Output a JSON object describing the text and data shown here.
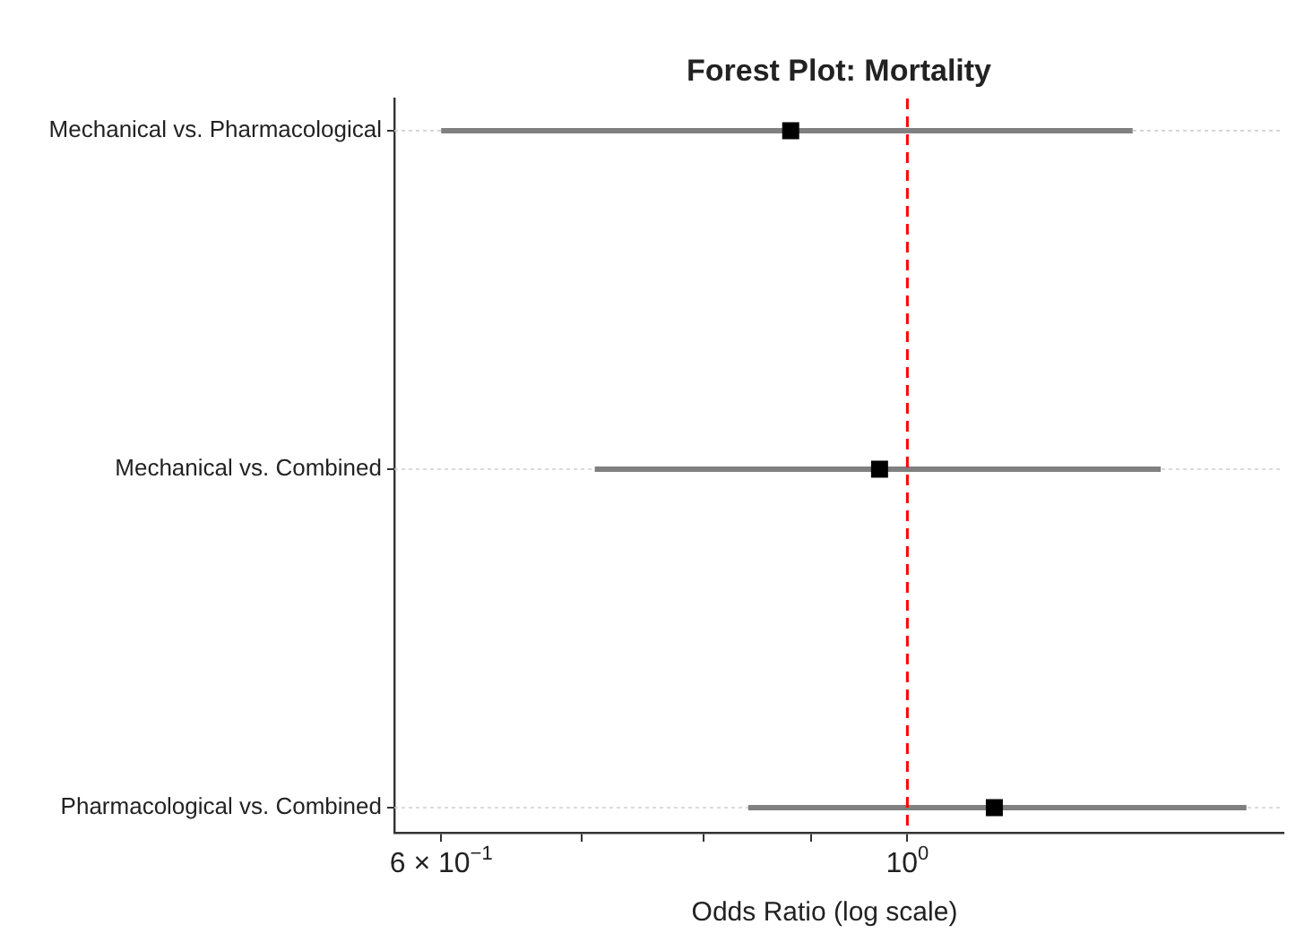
{
  "chart_data": {
    "type": "scatter",
    "orientation": "horizontal",
    "title": "Forest Plot: Mortality",
    "xlabel": "Odds Ratio (log scale)",
    "categories": [
      "Mechanical vs. Pharmacological",
      "Mechanical vs. Combined",
      "Pharmacological vs. Combined"
    ],
    "values": [
      0.88,
      0.97,
      1.1
    ],
    "errors": [
      [
        0.6,
        1.28
      ],
      [
        0.71,
        1.32
      ],
      [
        0.84,
        1.45
      ]
    ],
    "color": "#000000",
    "marker": "square",
    "log": "x",
    "xlim": [
      0.57,
      1.51
    ],
    "xticks": [
      {
        "value": 0.6,
        "label": "6 × 10$^{−1}$"
      },
      {
        "value": 0.7,
        "label": null
      },
      {
        "value": 0.8,
        "label": null
      },
      {
        "value": 0.9,
        "label": null
      },
      {
        "value": 1,
        "label": "10$^{0}$"
      }
    ],
    "grid": "y",
    "ref_lines": [
      {
        "axis": "x",
        "value": 1,
        "color": "#ff0000",
        "line_style": "dashed"
      }
    ]
  }
}
